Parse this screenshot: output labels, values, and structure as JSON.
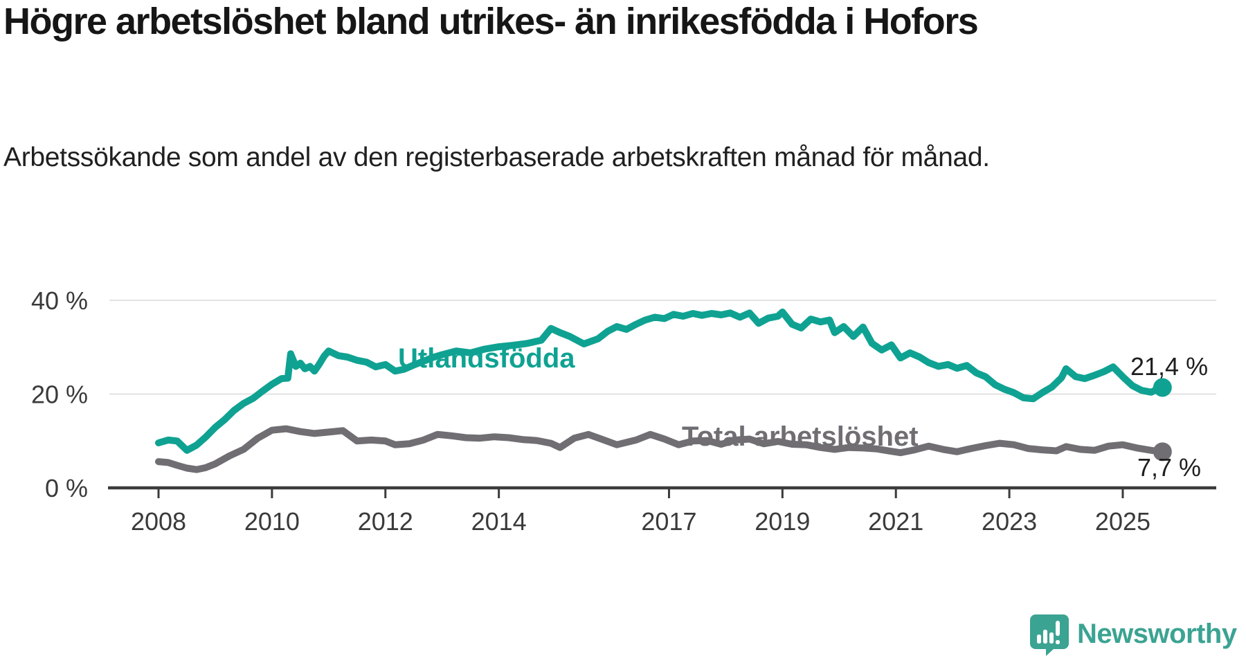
{
  "header": {
    "title": "Högre arbetslöshet bland utrikes- än inrikesfödda i Hofors",
    "subtitle": "Arbetssökande som andel av den registerbaserade arbetskraften månad för månad."
  },
  "branding": {
    "name": "Newsworthy",
    "logo_icon": "speech-bubble-bar-chart"
  },
  "colors": {
    "foreign_born_line": "#0fa292",
    "total_line": "#706e73",
    "gridline": "#e2e2e2",
    "axis": "#3b3b3b",
    "text_dark": "#161616",
    "brand_teal": "#3ba392"
  },
  "chart_data": {
    "type": "line",
    "title": "Högre arbetslöshet bland utrikes- än inrikesfödda i Hofors",
    "subtitle": "Arbetssökande som andel av den registerbaserade arbetskraften månad för månad.",
    "grid": "horizontal-only",
    "legend_position": "inline-labels",
    "x_axis": {
      "ticks": [
        2008,
        2010,
        2012,
        2014,
        2017,
        2019,
        2021,
        2023,
        2025
      ],
      "tick_labels": [
        "2008",
        "2010",
        "2012",
        "2014",
        "2017",
        "2019",
        "2021",
        "2023",
        "2025"
      ],
      "range_years": [
        2007.1,
        2026.6
      ]
    },
    "y_axis": {
      "ticks": [
        {
          "value": 0,
          "label": "0 %"
        },
        {
          "value": 20,
          "label": "20 %"
        },
        {
          "value": 40,
          "label": "40 %"
        }
      ],
      "ylim": [
        0,
        42
      ]
    },
    "series": [
      {
        "name": "Utlandsfödda",
        "color": "#0fa292",
        "end_label": "21,4 %",
        "end_value": 21.4,
        "points": [
          [
            2008.0,
            9.6
          ],
          [
            2008.17,
            10.2
          ],
          [
            2008.33,
            10.0
          ],
          [
            2008.5,
            8.0
          ],
          [
            2008.67,
            9.1
          ],
          [
            2008.83,
            10.8
          ],
          [
            2009.0,
            12.9
          ],
          [
            2009.17,
            14.6
          ],
          [
            2009.33,
            16.5
          ],
          [
            2009.5,
            18.0
          ],
          [
            2009.67,
            19.1
          ],
          [
            2009.83,
            20.6
          ],
          [
            2010.0,
            22.1
          ],
          [
            2010.17,
            23.3
          ],
          [
            2010.28,
            23.4
          ],
          [
            2010.33,
            28.6
          ],
          [
            2010.42,
            25.9
          ],
          [
            2010.5,
            26.6
          ],
          [
            2010.58,
            25.4
          ],
          [
            2010.67,
            25.9
          ],
          [
            2010.75,
            24.9
          ],
          [
            2010.83,
            26.3
          ],
          [
            2010.92,
            28.1
          ],
          [
            2011.0,
            29.2
          ],
          [
            2011.17,
            28.2
          ],
          [
            2011.33,
            27.9
          ],
          [
            2011.5,
            27.2
          ],
          [
            2011.67,
            26.8
          ],
          [
            2011.83,
            25.8
          ],
          [
            2012.0,
            26.3
          ],
          [
            2012.17,
            24.9
          ],
          [
            2012.33,
            25.3
          ],
          [
            2012.5,
            26.2
          ],
          [
            2012.67,
            27.0
          ],
          [
            2012.83,
            27.8
          ],
          [
            2013.0,
            28.4
          ],
          [
            2013.25,
            29.2
          ],
          [
            2013.5,
            28.8
          ],
          [
            2013.75,
            29.6
          ],
          [
            2014.0,
            30.1
          ],
          [
            2014.25,
            30.4
          ],
          [
            2014.5,
            30.8
          ],
          [
            2014.75,
            31.5
          ],
          [
            2014.92,
            34.0
          ],
          [
            2015.08,
            33.1
          ],
          [
            2015.25,
            32.3
          ],
          [
            2015.5,
            30.7
          ],
          [
            2015.75,
            31.8
          ],
          [
            2015.92,
            33.4
          ],
          [
            2016.08,
            34.4
          ],
          [
            2016.25,
            33.8
          ],
          [
            2016.42,
            34.9
          ],
          [
            2016.58,
            35.8
          ],
          [
            2016.75,
            36.4
          ],
          [
            2016.92,
            36.1
          ],
          [
            2017.08,
            37.0
          ],
          [
            2017.25,
            36.6
          ],
          [
            2017.42,
            37.2
          ],
          [
            2017.58,
            36.8
          ],
          [
            2017.75,
            37.2
          ],
          [
            2017.92,
            36.9
          ],
          [
            2018.08,
            37.3
          ],
          [
            2018.25,
            36.4
          ],
          [
            2018.42,
            37.3
          ],
          [
            2018.58,
            35.1
          ],
          [
            2018.75,
            36.2
          ],
          [
            2018.92,
            36.6
          ],
          [
            2019.0,
            37.5
          ],
          [
            2019.17,
            34.9
          ],
          [
            2019.33,
            34.1
          ],
          [
            2019.5,
            36.0
          ],
          [
            2019.67,
            35.4
          ],
          [
            2019.83,
            35.8
          ],
          [
            2019.92,
            33.1
          ],
          [
            2020.08,
            34.4
          ],
          [
            2020.25,
            32.3
          ],
          [
            2020.42,
            34.3
          ],
          [
            2020.58,
            30.8
          ],
          [
            2020.75,
            29.4
          ],
          [
            2020.92,
            30.5
          ],
          [
            2021.08,
            27.7
          ],
          [
            2021.25,
            28.8
          ],
          [
            2021.42,
            27.9
          ],
          [
            2021.58,
            26.7
          ],
          [
            2021.75,
            25.9
          ],
          [
            2021.92,
            26.3
          ],
          [
            2022.08,
            25.5
          ],
          [
            2022.25,
            26.1
          ],
          [
            2022.42,
            24.5
          ],
          [
            2022.58,
            23.7
          ],
          [
            2022.75,
            22.0
          ],
          [
            2022.92,
            21.0
          ],
          [
            2023.08,
            20.3
          ],
          [
            2023.25,
            19.2
          ],
          [
            2023.42,
            19.0
          ],
          [
            2023.58,
            20.3
          ],
          [
            2023.75,
            21.5
          ],
          [
            2023.92,
            23.5
          ],
          [
            2024.0,
            25.4
          ],
          [
            2024.17,
            23.7
          ],
          [
            2024.33,
            23.3
          ],
          [
            2024.5,
            24.0
          ],
          [
            2024.67,
            24.8
          ],
          [
            2024.83,
            25.8
          ],
          [
            2025.0,
            23.7
          ],
          [
            2025.17,
            21.8
          ],
          [
            2025.33,
            20.8
          ],
          [
            2025.5,
            20.4
          ],
          [
            2025.6,
            21.0
          ],
          [
            2025.7,
            21.4
          ]
        ]
      },
      {
        "name": "Total arbetslöshet",
        "color": "#706e73",
        "end_label": "7,7 %",
        "end_value": 7.7,
        "points": [
          [
            2008.0,
            5.6
          ],
          [
            2008.17,
            5.4
          ],
          [
            2008.33,
            4.8
          ],
          [
            2008.5,
            4.2
          ],
          [
            2008.67,
            3.9
          ],
          [
            2008.83,
            4.3
          ],
          [
            2009.0,
            5.1
          ],
          [
            2009.25,
            6.8
          ],
          [
            2009.5,
            8.2
          ],
          [
            2009.75,
            10.6
          ],
          [
            2010.0,
            12.3
          ],
          [
            2010.25,
            12.6
          ],
          [
            2010.5,
            12.0
          ],
          [
            2010.75,
            11.6
          ],
          [
            2011.0,
            11.9
          ],
          [
            2011.25,
            12.2
          ],
          [
            2011.5,
            10.0
          ],
          [
            2011.75,
            10.2
          ],
          [
            2012.0,
            10.0
          ],
          [
            2012.17,
            9.2
          ],
          [
            2012.42,
            9.4
          ],
          [
            2012.67,
            10.2
          ],
          [
            2012.92,
            11.4
          ],
          [
            2013.17,
            11.1
          ],
          [
            2013.42,
            10.7
          ],
          [
            2013.67,
            10.6
          ],
          [
            2013.92,
            10.9
          ],
          [
            2014.17,
            10.7
          ],
          [
            2014.42,
            10.3
          ],
          [
            2014.67,
            10.1
          ],
          [
            2014.92,
            9.5
          ],
          [
            2015.08,
            8.6
          ],
          [
            2015.33,
            10.6
          ],
          [
            2015.58,
            11.4
          ],
          [
            2015.83,
            10.3
          ],
          [
            2016.08,
            9.2
          ],
          [
            2016.42,
            10.2
          ],
          [
            2016.67,
            11.4
          ],
          [
            2016.92,
            10.4
          ],
          [
            2017.17,
            9.2
          ],
          [
            2017.42,
            10.0
          ],
          [
            2017.67,
            10.1
          ],
          [
            2017.92,
            9.3
          ],
          [
            2018.17,
            10.2
          ],
          [
            2018.42,
            10.4
          ],
          [
            2018.67,
            9.4
          ],
          [
            2018.92,
            9.9
          ],
          [
            2019.17,
            9.3
          ],
          [
            2019.42,
            9.2
          ],
          [
            2019.67,
            8.6
          ],
          [
            2019.92,
            8.2
          ],
          [
            2020.17,
            8.6
          ],
          [
            2020.42,
            8.5
          ],
          [
            2020.67,
            8.3
          ],
          [
            2020.92,
            7.8
          ],
          [
            2021.08,
            7.5
          ],
          [
            2021.33,
            8.1
          ],
          [
            2021.58,
            8.9
          ],
          [
            2021.83,
            8.2
          ],
          [
            2022.08,
            7.7
          ],
          [
            2022.33,
            8.4
          ],
          [
            2022.58,
            9.0
          ],
          [
            2022.83,
            9.5
          ],
          [
            2023.08,
            9.2
          ],
          [
            2023.33,
            8.4
          ],
          [
            2023.58,
            8.1
          ],
          [
            2023.83,
            7.9
          ],
          [
            2024.0,
            8.8
          ],
          [
            2024.25,
            8.2
          ],
          [
            2024.5,
            8.0
          ],
          [
            2024.75,
            8.9
          ],
          [
            2025.0,
            9.2
          ],
          [
            2025.25,
            8.5
          ],
          [
            2025.5,
            8.0
          ],
          [
            2025.7,
            7.7
          ]
        ]
      }
    ]
  }
}
